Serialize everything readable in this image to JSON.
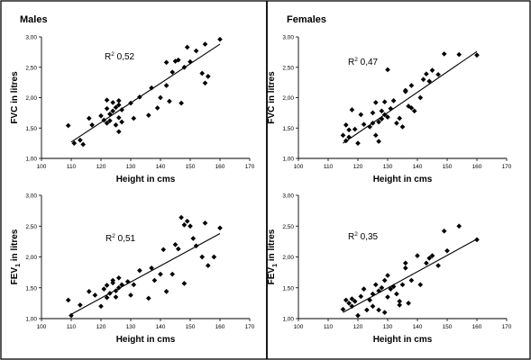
{
  "panels": [
    {
      "label": "Males"
    },
    {
      "label": "Females"
    }
  ],
  "chart_data": [
    {
      "type": "scatter",
      "panel": "Males",
      "xlabel": "Height in cms",
      "ylabel": "FVC in litres",
      "xlim": [
        100,
        170
      ],
      "ylim": [
        1.0,
        3.0
      ],
      "xticks": [
        "100",
        "110",
        "120",
        "130",
        "140",
        "150",
        "160",
        "170"
      ],
      "yticks": [
        "1,00",
        "1,50",
        "2,00",
        "2,50",
        "3,00"
      ],
      "annotation": {
        "prefix": "R",
        "sup": "2",
        "value": "0,52"
      },
      "trendline": {
        "x": [
          110,
          160
        ],
        "y": [
          1.27,
          2.88
        ]
      },
      "points": [
        [
          109,
          1.54
        ],
        [
          111,
          1.25
        ],
        [
          113,
          1.3
        ],
        [
          114,
          1.23
        ],
        [
          116,
          1.66
        ],
        [
          117,
          1.55
        ],
        [
          120,
          1.7
        ],
        [
          121,
          1.63
        ],
        [
          122,
          1.58
        ],
        [
          122,
          1.82
        ],
        [
          122,
          1.96
        ],
        [
          123,
          1.62
        ],
        [
          123,
          1.73
        ],
        [
          124,
          1.78
        ],
        [
          124,
          1.92
        ],
        [
          125,
          1.84
        ],
        [
          125,
          1.55
        ],
        [
          126,
          1.95
        ],
        [
          126,
          1.88
        ],
        [
          126,
          1.67
        ],
        [
          126,
          1.44
        ],
        [
          127,
          1.6
        ],
        [
          127,
          1.8
        ],
        [
          130,
          1.91
        ],
        [
          131,
          1.66
        ],
        [
          133,
          2.01
        ],
        [
          136,
          1.71
        ],
        [
          137,
          2.16
        ],
        [
          139,
          1.83
        ],
        [
          140,
          2.0
        ],
        [
          142,
          2.58
        ],
        [
          142,
          2.2
        ],
        [
          143,
          1.94
        ],
        [
          144,
          2.42
        ],
        [
          145,
          2.6
        ],
        [
          146,
          2.62
        ],
        [
          147,
          1.91
        ],
        [
          148,
          2.5
        ],
        [
          149,
          2.83
        ],
        [
          150,
          2.59
        ],
        [
          152,
          2.77
        ],
        [
          154,
          2.4
        ],
        [
          155,
          2.88
        ],
        [
          155,
          2.24
        ],
        [
          156,
          2.35
        ],
        [
          160,
          2.96
        ]
      ]
    },
    {
      "type": "scatter",
      "panel": "Females",
      "xlabel": "Height in cms",
      "ylabel": "FVC in litres",
      "xlim": [
        100,
        170
      ],
      "ylim": [
        1.0,
        3.0
      ],
      "xticks": [
        "100",
        "110",
        "120",
        "130",
        "140",
        "150",
        "160",
        "170"
      ],
      "yticks": [
        "1,00",
        "1,50",
        "2,00",
        "2,50",
        "3,00"
      ],
      "annotation": {
        "prefix": "R",
        "sup": "2",
        "value": "0,47"
      },
      "trendline": {
        "x": [
          115,
          160
        ],
        "y": [
          1.25,
          2.76
        ]
      },
      "points": [
        [
          115,
          1.38
        ],
        [
          116,
          1.29
        ],
        [
          116,
          1.55
        ],
        [
          117,
          1.47
        ],
        [
          117,
          1.35
        ],
        [
          118,
          1.8
        ],
        [
          119,
          1.48
        ],
        [
          120,
          1.25
        ],
        [
          121,
          1.72
        ],
        [
          122,
          1.56
        ],
        [
          124,
          1.52
        ],
        [
          125,
          1.75
        ],
        [
          125,
          1.58
        ],
        [
          126,
          1.92
        ],
        [
          126,
          1.38
        ],
        [
          127,
          1.6
        ],
        [
          127,
          1.28
        ],
        [
          128,
          1.65
        ],
        [
          128,
          1.78
        ],
        [
          129,
          1.72
        ],
        [
          129,
          1.93
        ],
        [
          130,
          1.68
        ],
        [
          130,
          2.46
        ],
        [
          131,
          1.82
        ],
        [
          132,
          1.95
        ],
        [
          133,
          1.58
        ],
        [
          134,
          1.66
        ],
        [
          135,
          1.52
        ],
        [
          136,
          2.1
        ],
        [
          136,
          2.12
        ],
        [
          137,
          1.86
        ],
        [
          138,
          2.2
        ],
        [
          138,
          1.83
        ],
        [
          139,
          1.78
        ],
        [
          141,
          2.0
        ],
        [
          142,
          2.3
        ],
        [
          143,
          2.39
        ],
        [
          144,
          2.27
        ],
        [
          145,
          2.45
        ],
        [
          147,
          2.38
        ],
        [
          149,
          2.72
        ],
        [
          154,
          2.71
        ],
        [
          160,
          2.7
        ]
      ]
    },
    {
      "type": "scatter",
      "panel": "Males",
      "xlabel": "Height in cms",
      "ylabel": {
        "base": "FEV",
        "sub": "1",
        "rest": " in litres"
      },
      "xlim": [
        100,
        170
      ],
      "ylim": [
        1.0,
        3.0
      ],
      "xticks": [
        "100",
        "110",
        "120",
        "130",
        "140",
        "150",
        "160",
        "170"
      ],
      "yticks": [
        "1,00",
        "1,50",
        "2,00",
        "2,50",
        "3,00"
      ],
      "annotation": {
        "prefix": "R",
        "sup": "2",
        "value": "0,51"
      },
      "trendline": {
        "x": [
          110,
          160
        ],
        "y": [
          1.07,
          2.38
        ]
      },
      "points": [
        [
          109,
          1.3
        ],
        [
          110,
          1.05
        ],
        [
          113,
          1.22
        ],
        [
          116,
          1.44
        ],
        [
          118,
          1.38
        ],
        [
          120,
          1.2
        ],
        [
          121,
          1.48
        ],
        [
          122,
          1.54
        ],
        [
          122,
          1.34
        ],
        [
          123,
          1.41
        ],
        [
          124,
          1.58
        ],
        [
          124,
          1.62
        ],
        [
          125,
          1.45
        ],
        [
          125,
          1.35
        ],
        [
          126,
          1.66
        ],
        [
          126,
          1.5
        ],
        [
          127,
          1.55
        ],
        [
          129,
          1.6
        ],
        [
          130,
          1.38
        ],
        [
          131,
          1.55
        ],
        [
          133,
          1.78
        ],
        [
          136,
          1.33
        ],
        [
          137,
          1.82
        ],
        [
          138,
          1.62
        ],
        [
          140,
          1.72
        ],
        [
          141,
          2.12
        ],
        [
          142,
          1.44
        ],
        [
          144,
          1.72
        ],
        [
          145,
          2.2
        ],
        [
          146,
          2.13
        ],
        [
          147,
          2.64
        ],
        [
          148,
          1.57
        ],
        [
          148,
          2.52
        ],
        [
          149,
          2.58
        ],
        [
          150,
          2.5
        ],
        [
          151,
          2.3
        ],
        [
          152,
          2.18
        ],
        [
          154,
          2.0
        ],
        [
          155,
          2.55
        ],
        [
          156,
          1.86
        ],
        [
          158,
          2.0
        ],
        [
          160,
          2.47
        ]
      ]
    },
    {
      "type": "scatter",
      "panel": "Females",
      "xlabel": "Height in cms",
      "ylabel": {
        "base": "FEV",
        "sub": "1",
        "rest": " in litres"
      },
      "xlim": [
        100,
        170
      ],
      "ylim": [
        1.0,
        3.0
      ],
      "xticks": [
        "100",
        "110",
        "120",
        "130",
        "140",
        "150",
        "160",
        "170"
      ],
      "yticks": [
        "1,00",
        "1,50",
        "2,00",
        "2,50",
        "3,00"
      ],
      "annotation": {
        "prefix": "R",
        "sup": "2",
        "value": "0,35"
      },
      "trendline": {
        "x": [
          115,
          160
        ],
        "y": [
          1.1,
          2.29
        ]
      },
      "points": [
        [
          115,
          1.15
        ],
        [
          116,
          1.3
        ],
        [
          117,
          1.25
        ],
        [
          118,
          1.2
        ],
        [
          118,
          1.32
        ],
        [
          119,
          1.28
        ],
        [
          120,
          1.05
        ],
        [
          121,
          1.36
        ],
        [
          122,
          1.48
        ],
        [
          123,
          1.14
        ],
        [
          124,
          1.3
        ],
        [
          125,
          1.2
        ],
        [
          125,
          1.4
        ],
        [
          126,
          1.55
        ],
        [
          127,
          1.45
        ],
        [
          127,
          1.14
        ],
        [
          128,
          1.5
        ],
        [
          129,
          1.1
        ],
        [
          129,
          1.62
        ],
        [
          130,
          1.35
        ],
        [
          130,
          1.7
        ],
        [
          131,
          1.48
        ],
        [
          132,
          1.52
        ],
        [
          133,
          1.4
        ],
        [
          134,
          1.28
        ],
        [
          134,
          1.22
        ],
        [
          135,
          1.55
        ],
        [
          136,
          1.9
        ],
        [
          136,
          1.82
        ],
        [
          137,
          1.25
        ],
        [
          138,
          1.62
        ],
        [
          140,
          2.02
        ],
        [
          141,
          1.55
        ],
        [
          143,
          1.9
        ],
        [
          144,
          1.98
        ],
        [
          145,
          2.02
        ],
        [
          147,
          1.86
        ],
        [
          149,
          2.42
        ],
        [
          150,
          2.1
        ],
        [
          154,
          2.5
        ],
        [
          160,
          2.28
        ]
      ]
    }
  ]
}
